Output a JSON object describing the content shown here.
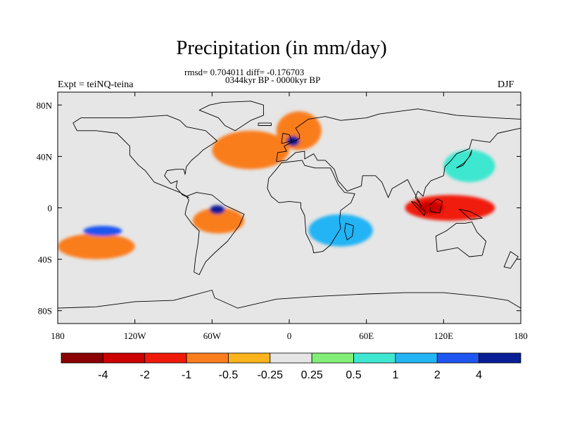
{
  "header": {
    "title": "Precipitation (in mm/day)",
    "stats": "rmsd= 0.704011 diff= -0.176703",
    "period": "0344kyr BP - 0000kyr BP",
    "experiment": "Expt = teiNQ-teina",
    "season": "DJF"
  },
  "chart_data": {
    "type": "heatmap",
    "title": "Precipitation (in mm/day)",
    "subtitle": "0344kyr BP - 0000kyr BP",
    "projection": "cylindrical-equidistant",
    "xlim": [
      -180,
      180
    ],
    "ylim": [
      -90,
      90
    ],
    "x_ticks": [
      {
        "value": -180,
        "label": "180"
      },
      {
        "value": -120,
        "label": "120W"
      },
      {
        "value": -60,
        "label": "60W"
      },
      {
        "value": 0,
        "label": "0"
      },
      {
        "value": 60,
        "label": "60E"
      },
      {
        "value": 120,
        "label": "120E"
      },
      {
        "value": 180,
        "label": "180"
      }
    ],
    "y_ticks": [
      {
        "value": 80,
        "label": "80N"
      },
      {
        "value": 40,
        "label": "40N"
      },
      {
        "value": 0,
        "label": "0"
      },
      {
        "value": -40,
        "label": "40S"
      },
      {
        "value": -80,
        "label": "80S"
      }
    ],
    "contour_levels": [
      "-4",
      "-2",
      "-1",
      "-0.5",
      "-0.25",
      "0.25",
      "0.5",
      "1",
      "2",
      "4"
    ],
    "colorbar_colors": [
      "#8b0000",
      "#cc0000",
      "#f01a0a",
      "#fa7d1e",
      "#fdb41c",
      "#e6e6e6",
      "#83ee77",
      "#3ee7d0",
      "#23b4f4",
      "#1f55f0",
      "#0a1e96"
    ],
    "regions": [
      {
        "lon": [
          -180,
          180
        ],
        "lat": [
          -70,
          -58
        ],
        "level": -0.25
      },
      {
        "lon": [
          -180,
          -120
        ],
        "lat": [
          -40,
          -20
        ],
        "level": -1
      },
      {
        "lon": [
          -160,
          -130
        ],
        "lat": [
          -22,
          -14
        ],
        "level": 2
      },
      {
        "lon": [
          -75,
          -35
        ],
        "lat": [
          -20,
          0
        ],
        "level": -1
      },
      {
        "lon": [
          -62,
          -50
        ],
        "lat": [
          -5,
          2
        ],
        "level": 4
      },
      {
        "lon": [
          -60,
          0
        ],
        "lat": [
          30,
          60
        ],
        "level": -1
      },
      {
        "lon": [
          -10,
          25
        ],
        "lat": [
          45,
          75
        ],
        "level": -1
      },
      {
        "lon": [
          -2,
          8
        ],
        "lat": [
          48,
          56
        ],
        "level": 4
      },
      {
        "lon": [
          15,
          65
        ],
        "lat": [
          -30,
          -5
        ],
        "level": 1
      },
      {
        "lon": [
          90,
          160
        ],
        "lat": [
          -10,
          10
        ],
        "level": -2
      },
      {
        "lon": [
          100,
          120
        ],
        "lat": [
          -5,
          5
        ],
        "level": -4
      },
      {
        "lon": [
          120,
          160
        ],
        "lat": [
          20,
          45
        ],
        "level": 0.5
      }
    ]
  }
}
